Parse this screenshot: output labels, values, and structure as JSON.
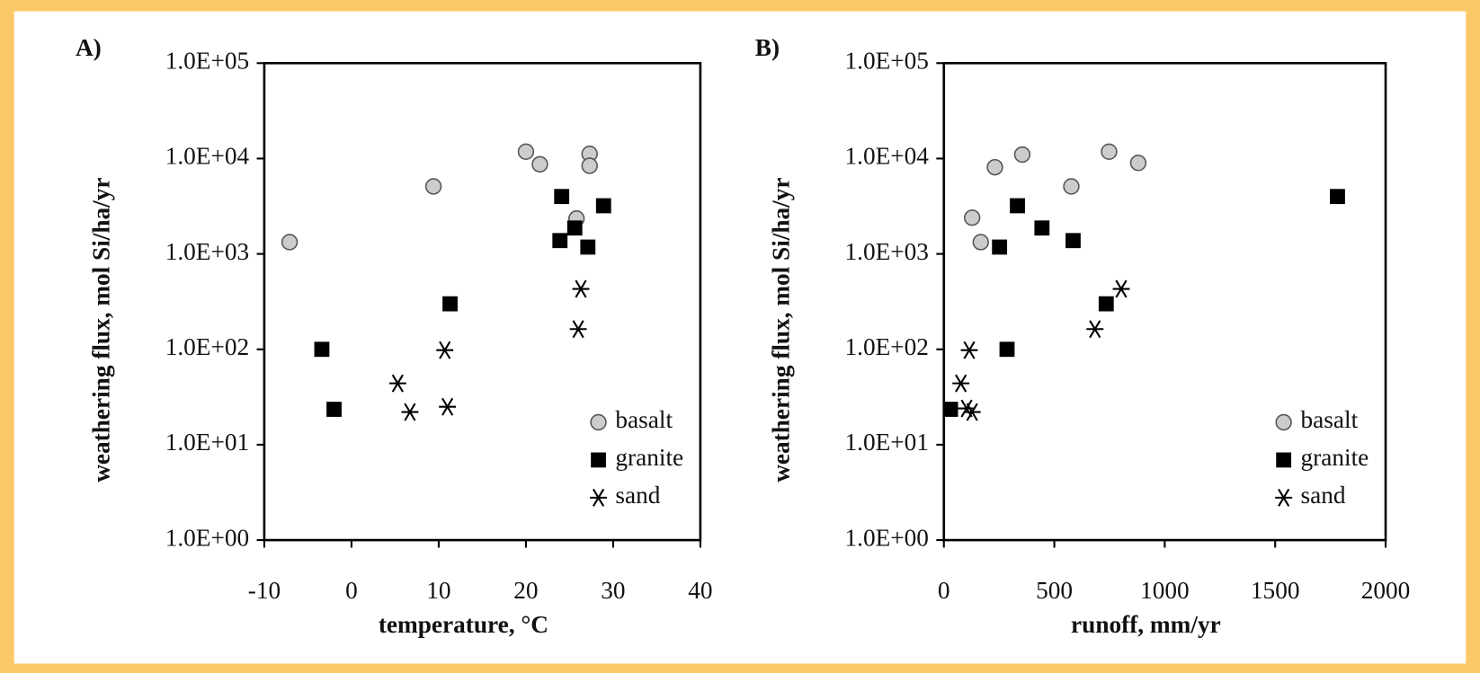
{
  "chart_data": [
    {
      "type": "scatter",
      "panel_label": "A)",
      "x_label": "temperature, °C",
      "y_label": "weathering flux, mol Si/ha/yr",
      "log_y": true,
      "legend": "lower right",
      "xlim": [
        -10,
        40
      ],
      "xticks": [
        -10,
        0,
        10,
        20,
        30,
        40
      ],
      "ylim": [
        1,
        100000
      ],
      "yticks": [
        {
          "value": 1,
          "label": "1.0E+00"
        },
        {
          "value": 10,
          "label": "1.0E+01"
        },
        {
          "value": 100,
          "label": "1.0E+02"
        },
        {
          "value": 1000,
          "label": "1.0E+03"
        },
        {
          "value": 10000,
          "label": "1.0E+04"
        },
        {
          "value": 100000,
          "label": "1.0E+05"
        }
      ],
      "series": [
        {
          "name": "basalt",
          "marker": "circle",
          "color": "#cccccc",
          "x": [
            -7.1,
            9.4,
            20.0,
            21.6,
            27.3,
            27.3,
            25.8
          ],
          "values": [
            1330,
            5100,
            11800,
            8700,
            11200,
            8400,
            2350
          ]
        },
        {
          "name": "granite",
          "marker": "square",
          "color": "#000000",
          "x": [
            -3.4,
            -2.0,
            11.3,
            24.1,
            23.9,
            25.6,
            27.1,
            28.9
          ],
          "values": [
            100,
            23.5,
            300,
            4000,
            1380,
            1870,
            1180,
            3200
          ]
        },
        {
          "name": "sand",
          "marker": "asterisk",
          "color": "#000000",
          "x": [
            5.3,
            6.7,
            10.7,
            11.0,
            26.3,
            26.0
          ],
          "values": [
            44,
            22,
            98,
            25,
            430,
            163
          ]
        }
      ]
    },
    {
      "type": "scatter",
      "panel_label": "B)",
      "x_label": "runoff, mm/yr",
      "y_label": "weathering flux, mol Si/ha/yr",
      "log_y": true,
      "legend": "lower right",
      "xlim": [
        0,
        2000
      ],
      "xticks": [
        0,
        500,
        1000,
        1500,
        2000
      ],
      "ylim": [
        1,
        100000
      ],
      "yticks": [
        {
          "value": 1,
          "label": "1.0E+00"
        },
        {
          "value": 10,
          "label": "1.0E+01"
        },
        {
          "value": 100,
          "label": "1.0E+02"
        },
        {
          "value": 1000,
          "label": "1.0E+03"
        },
        {
          "value": 10000,
          "label": "1.0E+04"
        },
        {
          "value": 100000,
          "label": "1.0E+05"
        }
      ],
      "series": [
        {
          "name": "basalt",
          "marker": "circle",
          "color": "#cccccc",
          "x": [
            128,
            167,
            231,
            355,
            577,
            748,
            880
          ],
          "values": [
            2400,
            1330,
            8100,
            11000,
            5100,
            11800,
            9000
          ]
        },
        {
          "name": "granite",
          "marker": "square",
          "color": "#000000",
          "x": [
            30,
            252,
            286,
            333,
            444,
            585,
            735,
            1782
          ],
          "values": [
            23.5,
            1180,
            100,
            3200,
            1870,
            1380,
            300,
            4000
          ]
        },
        {
          "name": "sand",
          "marker": "asterisk",
          "color": "#000000",
          "x": [
            77,
            115,
            103,
            128,
            684,
            803
          ],
          "values": [
            44,
            98,
            24,
            22,
            163,
            430
          ]
        }
      ]
    }
  ]
}
